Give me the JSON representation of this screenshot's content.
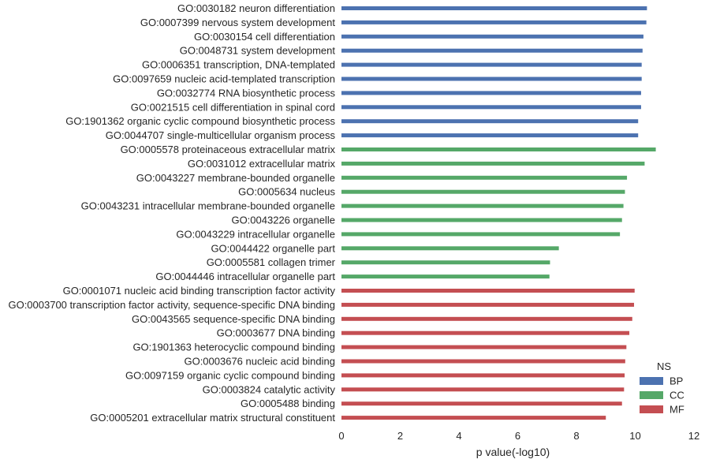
{
  "chart_data": {
    "type": "bar",
    "orientation": "horizontal",
    "xlabel": "p value(-log10)",
    "ylabel": "",
    "title": "",
    "xlim": [
      0,
      12
    ],
    "xticks": [
      0,
      2,
      4,
      6,
      8,
      10,
      12
    ],
    "grid": false,
    "legend": {
      "title": "NS",
      "placement": "bottom-right",
      "entries": [
        {
          "name": "BP",
          "color": "#4c72b0"
        },
        {
          "name": "CC",
          "color": "#55a868"
        },
        {
          "name": "MF",
          "color": "#c44e52"
        }
      ]
    },
    "bars": [
      {
        "label": "GO:0030182 neuron differentiation",
        "value": 10.4,
        "ns": "BP"
      },
      {
        "label": "GO:0007399 nervous system development",
        "value": 10.38,
        "ns": "BP"
      },
      {
        "label": "GO:0030154 cell differentiation",
        "value": 10.28,
        "ns": "BP"
      },
      {
        "label": "GO:0048731 system development",
        "value": 10.25,
        "ns": "BP"
      },
      {
        "label": "GO:0006351 transcription, DNA-templated",
        "value": 10.22,
        "ns": "BP"
      },
      {
        "label": "GO:0097659 nucleic acid-templated transcription",
        "value": 10.22,
        "ns": "BP"
      },
      {
        "label": "GO:0032774 RNA biosynthetic process",
        "value": 10.2,
        "ns": "BP"
      },
      {
        "label": "GO:0021515 cell differentiation in spinal cord",
        "value": 10.2,
        "ns": "BP"
      },
      {
        "label": "GO:1901362 organic cyclic compound biosynthetic process",
        "value": 10.1,
        "ns": "BP"
      },
      {
        "label": "GO:0044707 single-multicellular organism process",
        "value": 10.1,
        "ns": "BP"
      },
      {
        "label": "GO:0005578 proteinaceous extracellular matrix",
        "value": 10.7,
        "ns": "CC"
      },
      {
        "label": "GO:0031012 extracellular matrix",
        "value": 10.32,
        "ns": "CC"
      },
      {
        "label": "GO:0043227 membrane-bounded organelle",
        "value": 9.72,
        "ns": "CC"
      },
      {
        "label": "GO:0005634 nucleus",
        "value": 9.65,
        "ns": "CC"
      },
      {
        "label": "GO:0043231 intracellular membrane-bounded organelle",
        "value": 9.6,
        "ns": "CC"
      },
      {
        "label": "GO:0043226 organelle",
        "value": 9.55,
        "ns": "CC"
      },
      {
        "label": "GO:0043229 intracellular organelle",
        "value": 9.48,
        "ns": "CC"
      },
      {
        "label": "GO:0044422 organelle part",
        "value": 7.4,
        "ns": "CC"
      },
      {
        "label": "GO:0005581 collagen trimer",
        "value": 7.1,
        "ns": "CC"
      },
      {
        "label": "GO:0044446 intracellular organelle part",
        "value": 7.08,
        "ns": "CC"
      },
      {
        "label": "GO:0001071 nucleic acid binding transcription factor activity",
        "value": 9.98,
        "ns": "MF"
      },
      {
        "label": "GO:0003700 transcription factor activity, sequence-specific DNA binding",
        "value": 9.96,
        "ns": "MF"
      },
      {
        "label": "GO:0043565 sequence-specific DNA binding",
        "value": 9.9,
        "ns": "MF"
      },
      {
        "label": "GO:0003677 DNA binding",
        "value": 9.8,
        "ns": "MF"
      },
      {
        "label": "GO:1901363 heterocyclic compound binding",
        "value": 9.7,
        "ns": "MF"
      },
      {
        "label": "GO:0003676 nucleic acid binding",
        "value": 9.66,
        "ns": "MF"
      },
      {
        "label": "GO:0097159 organic cyclic compound binding",
        "value": 9.64,
        "ns": "MF"
      },
      {
        "label": "GO:0003824 catalytic activity",
        "value": 9.62,
        "ns": "MF"
      },
      {
        "label": "GO:0005488 binding",
        "value": 9.55,
        "ns": "MF"
      },
      {
        "label": "GO:0005201 extracellular matrix structural constituent",
        "value": 9.0,
        "ns": "MF"
      }
    ]
  }
}
